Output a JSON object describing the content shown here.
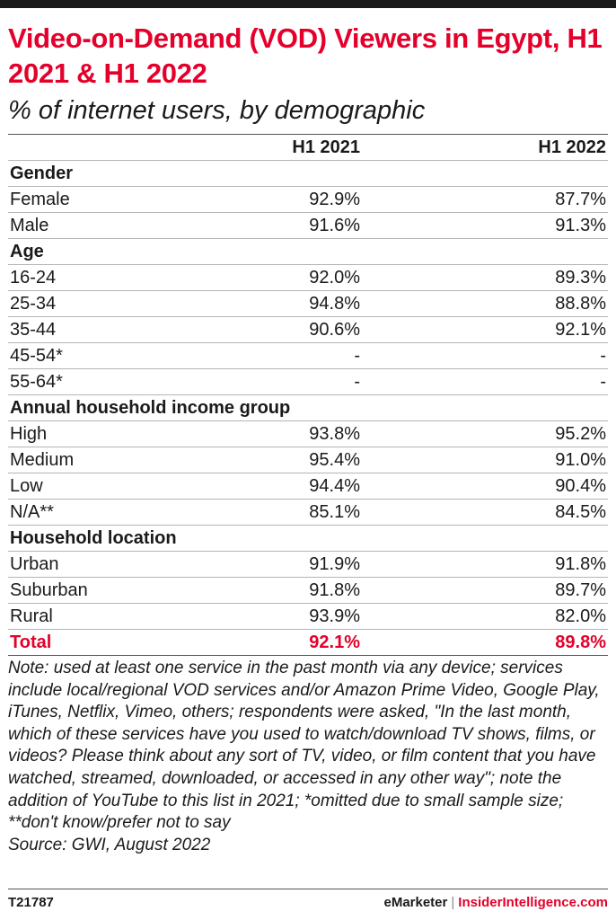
{
  "chart_data": {
    "type": "table",
    "title": "Video-on-Demand (VOD) Viewers in Egypt, H1 2021 & H1 2022",
    "subtitle": "% of internet users, by demographic",
    "columns": [
      "H1 2021",
      "H1 2022"
    ],
    "groups": [
      {
        "name": "Gender",
        "rows": [
          {
            "label": "Female",
            "values": [
              "92.9%",
              "87.7%"
            ]
          },
          {
            "label": "Male",
            "values": [
              "91.6%",
              "91.3%"
            ]
          }
        ]
      },
      {
        "name": "Age",
        "rows": [
          {
            "label": "16-24",
            "values": [
              "92.0%",
              "89.3%"
            ]
          },
          {
            "label": "25-34",
            "values": [
              "94.8%",
              "88.8%"
            ]
          },
          {
            "label": "35-44",
            "values": [
              "90.6%",
              "92.1%"
            ]
          },
          {
            "label": "45-54*",
            "values": [
              "-",
              "-"
            ]
          },
          {
            "label": "55-64*",
            "values": [
              "-",
              "-"
            ]
          }
        ]
      },
      {
        "name": "Annual household income group",
        "rows": [
          {
            "label": "High",
            "values": [
              "93.8%",
              "95.2%"
            ]
          },
          {
            "label": "Medium",
            "values": [
              "95.4%",
              "91.0%"
            ]
          },
          {
            "label": "Low",
            "values": [
              "94.4%",
              "90.4%"
            ]
          },
          {
            "label": "N/A**",
            "values": [
              "85.1%",
              "84.5%"
            ]
          }
        ]
      },
      {
        "name": "Household location",
        "rows": [
          {
            "label": "Urban",
            "values": [
              "91.9%",
              "91.8%"
            ]
          },
          {
            "label": "Suburban",
            "values": [
              "91.8%",
              "89.7%"
            ]
          },
          {
            "label": "Rural",
            "values": [
              "93.9%",
              "82.0%"
            ]
          }
        ]
      }
    ],
    "total": {
      "label": "Total",
      "values": [
        "92.1%",
        "89.8%"
      ]
    },
    "note": "Note: used at least one service in the past month via any device; services include local/regional VOD services and/or Amazon Prime Video, Google Play, iTunes, Netflix, Vimeo, others; respondents were asked, \"In the last month, which of these services have you used to watch/download TV shows, films, or videos? Please think about any sort of TV, video, or film content that you have watched, streamed, downloaded, or accessed in any other way\"; note the addition of YouTube to this list in 2021; *omitted due to small sample size; **don't know/prefer not to say",
    "source": "Source: GWI, August 2022"
  },
  "footer": {
    "chart_id": "T21787",
    "brand_left": "eMarketer",
    "separator": "|",
    "brand_right": "InsiderIntelligence.com"
  },
  "colors": {
    "accent": "#e4002b",
    "text": "#1a1a1a"
  }
}
